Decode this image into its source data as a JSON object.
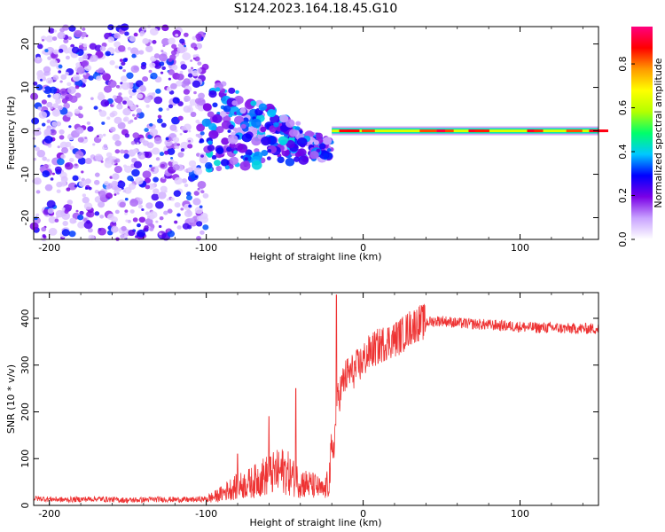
{
  "title": "S124.2023.164.18.45.G10",
  "chart_data": [
    {
      "type": "heatmap",
      "xlabel": "Height of straight line (km)",
      "ylabel": "Frequency (Hz)",
      "xlim": [
        -210,
        150
      ],
      "ylim": [
        -25,
        24
      ],
      "xticks": [
        -200,
        -100,
        0,
        100
      ],
      "yticks": [
        -20,
        -10,
        0,
        10,
        20
      ],
      "colorbar": {
        "label": "Normalized spectral amplitude",
        "range": [
          0,
          0.97
        ],
        "ticks": [
          0.0,
          0.2,
          0.4,
          0.6,
          0.8
        ],
        "colors": [
          "#ffffff",
          "#c9a3ff",
          "#7a00e6",
          "#0000ff",
          "#00c8ff",
          "#00ff6a",
          "#b4ff00",
          "#ffff00",
          "#ff9900",
          "#ff0000",
          "#ff007f"
        ]
      },
      "features": [
        {
          "region": "noise",
          "x_range": [
            -210,
            -100
          ],
          "frequency_range": [
            -25,
            24
          ],
          "amplitude_max": 0.3
        },
        {
          "region": "signal_onset",
          "x_range": [
            -100,
            -20
          ],
          "frequency_range": [
            -8,
            9
          ],
          "amplitude_max": 0.35
        },
        {
          "region": "carrier_line",
          "x_range": [
            -20,
            150
          ],
          "frequency": 0.0,
          "amplitude_max": 0.95
        }
      ]
    },
    {
      "type": "line",
      "xlabel": "Height of straight line (km)",
      "ylabel": "SNR (10 * v/v)",
      "xlim": [
        -210,
        150
      ],
      "ylim": [
        0,
        455
      ],
      "xticks": [
        -200,
        -100,
        0,
        100
      ],
      "yticks": [
        0,
        100,
        200,
        300,
        400
      ],
      "color": "#ee3333",
      "series": [
        {
          "x": [
            -210,
            -190,
            -170,
            -150,
            -130,
            -110,
            -100,
            -95,
            -90,
            -85,
            -80,
            -75,
            -70,
            -65,
            -60,
            -55,
            -50,
            -45,
            -40,
            -35,
            -30,
            -25,
            -22,
            -20,
            -18,
            -17,
            -16,
            -14,
            -12,
            -10,
            -5,
            0,
            5,
            10,
            15,
            20,
            25,
            30,
            35,
            40,
            50,
            60,
            70,
            80,
            90,
            100,
            110,
            120,
            130,
            140,
            150
          ],
          "y": [
            15,
            12,
            14,
            11,
            13,
            12,
            14,
            18,
            25,
            35,
            40,
            45,
            50,
            60,
            65,
            70,
            75,
            60,
            50,
            45,
            40,
            30,
            50,
            100,
            150,
            200,
            230,
            250,
            270,
            280,
            290,
            310,
            330,
            340,
            350,
            355,
            365,
            380,
            390,
            392,
            395,
            390,
            388,
            386,
            384,
            382,
            380,
            380,
            378,
            378,
            378
          ]
        }
      ],
      "spikes": [
        {
          "x": -17,
          "y": 450
        },
        {
          "x": -43,
          "y": 250
        },
        {
          "x": -60,
          "y": 190
        },
        {
          "x": -80,
          "y": 110
        }
      ]
    }
  ]
}
